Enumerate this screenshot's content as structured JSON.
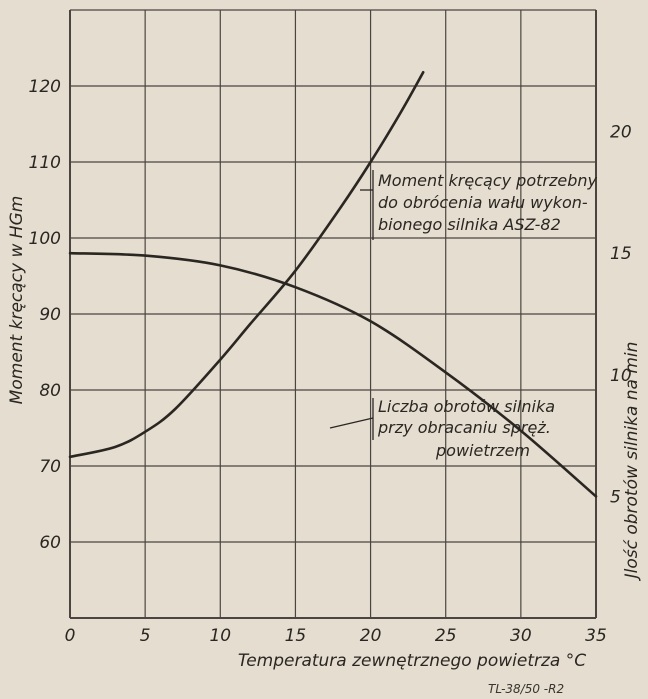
{
  "colors": {
    "paper": "#e4ddd0",
    "ink": "#2a2622",
    "grid": "#4a4540"
  },
  "chart_data": {
    "type": "line",
    "xlabel": "Temperatura zewnętrznego powietrza °C",
    "ylabel_left": "Moment kręcący w HGm",
    "ylabel_right": "Jlość obrotów silnika na min",
    "xlim": [
      0,
      35
    ],
    "ylim_left": [
      50,
      130
    ],
    "ylim_right": [
      0,
      25
    ],
    "x_ticks": [
      "0",
      "5",
      "10",
      "15",
      "20",
      "25",
      "30",
      "35"
    ],
    "y_ticks_left": [
      "60",
      "70",
      "80",
      "90",
      "100",
      "110",
      "120"
    ],
    "y_ticks_right": [
      "5",
      "10",
      "15",
      "20"
    ],
    "grid": true,
    "series": [
      {
        "axis": "left",
        "annotation": [
          "Moment kręcący potrzebny",
          "do obrócenia wału wykon-",
          "bionego silnika ASZ-82"
        ],
        "x": [
          0,
          3,
          5,
          7,
          10,
          12,
          15,
          18,
          20,
          22,
          23.5
        ],
        "y": [
          71.2,
          72.5,
          74.5,
          77.5,
          84,
          88.7,
          95.7,
          104,
          110,
          116.5,
          121.8
        ]
      },
      {
        "axis": "right",
        "annotation": [
          "Liczba obrotów silnika",
          "przy obracaniu spręż.",
          "powietrzem"
        ],
        "x": [
          0,
          5,
          10,
          15,
          20,
          25,
          30,
          35
        ],
        "y": [
          15,
          14.9,
          14.5,
          13.6,
          12.2,
          10.1,
          7.7,
          5
        ]
      }
    ],
    "footer": "TL-38/50 -R2"
  }
}
